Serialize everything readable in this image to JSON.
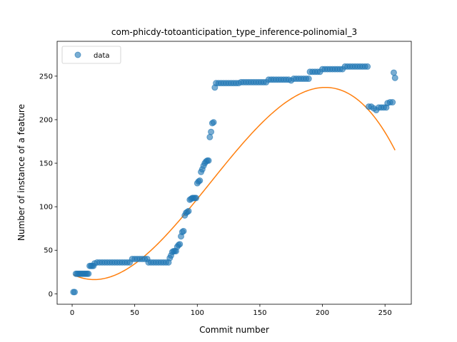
{
  "chart_data": {
    "type": "scatter",
    "title": "com-phicdy-totoanticipation_type_inference-polinomial_3",
    "xlabel": "Commit number",
    "ylabel": "Number of instance of a feature",
    "xlim": [
      -12,
      271
    ],
    "ylim": [
      -12,
      290
    ],
    "xticks": [
      0,
      50,
      100,
      150,
      200,
      250
    ],
    "yticks": [
      0,
      50,
      100,
      150,
      200,
      250
    ],
    "grid": false,
    "legend": {
      "position": "top-left",
      "entries": [
        "data"
      ]
    },
    "colors": {
      "data": "#1f77b4",
      "fit": "#ff7f0e"
    },
    "series": [
      {
        "name": "data",
        "kind": "scatter",
        "points": [
          [
            1,
            2
          ],
          [
            2,
            2
          ],
          [
            3,
            23
          ],
          [
            4,
            23
          ],
          [
            5,
            23
          ],
          [
            6,
            23
          ],
          [
            7,
            23
          ],
          [
            8,
            23
          ],
          [
            9,
            23
          ],
          [
            10,
            23
          ],
          [
            11,
            23
          ],
          [
            12,
            23
          ],
          [
            13,
            23
          ],
          [
            14,
            32
          ],
          [
            15,
            32
          ],
          [
            16,
            32
          ],
          [
            17,
            32
          ],
          [
            18,
            35
          ],
          [
            20,
            36
          ],
          [
            22,
            36
          ],
          [
            24,
            36
          ],
          [
            26,
            36
          ],
          [
            28,
            36
          ],
          [
            30,
            36
          ],
          [
            32,
            36
          ],
          [
            34,
            36
          ],
          [
            36,
            36
          ],
          [
            38,
            36
          ],
          [
            40,
            36
          ],
          [
            42,
            36
          ],
          [
            44,
            36
          ],
          [
            46,
            36
          ],
          [
            48,
            40
          ],
          [
            50,
            40
          ],
          [
            52,
            40
          ],
          [
            54,
            40
          ],
          [
            56,
            40
          ],
          [
            58,
            40
          ],
          [
            60,
            40
          ],
          [
            61,
            36
          ],
          [
            63,
            36
          ],
          [
            65,
            36
          ],
          [
            67,
            36
          ],
          [
            69,
            36
          ],
          [
            71,
            36
          ],
          [
            73,
            36
          ],
          [
            75,
            36
          ],
          [
            77,
            36
          ],
          [
            78,
            41
          ],
          [
            79,
            44
          ],
          [
            80,
            48
          ],
          [
            81,
            49
          ],
          [
            82,
            49
          ],
          [
            83,
            49
          ],
          [
            84,
            54
          ],
          [
            85,
            56
          ],
          [
            86,
            57
          ],
          [
            87,
            66
          ],
          [
            88,
            71
          ],
          [
            89,
            72
          ],
          [
            90,
            90
          ],
          [
            91,
            93
          ],
          [
            92,
            94
          ],
          [
            93,
            95
          ],
          [
            94,
            108
          ],
          [
            95,
            109
          ],
          [
            96,
            110
          ],
          [
            97,
            110
          ],
          [
            98,
            110
          ],
          [
            99,
            110
          ],
          [
            100,
            127
          ],
          [
            101,
            129
          ],
          [
            102,
            130
          ],
          [
            103,
            140
          ],
          [
            104,
            143
          ],
          [
            105,
            147
          ],
          [
            106,
            150
          ],
          [
            107,
            152
          ],
          [
            108,
            153
          ],
          [
            109,
            153
          ],
          [
            110,
            180
          ],
          [
            111,
            186
          ],
          [
            112,
            196
          ],
          [
            113,
            197
          ],
          [
            114,
            237
          ],
          [
            115,
            242
          ],
          [
            117,
            242
          ],
          [
            119,
            242
          ],
          [
            121,
            242
          ],
          [
            123,
            242
          ],
          [
            125,
            242
          ],
          [
            127,
            242
          ],
          [
            129,
            242
          ],
          [
            131,
            242
          ],
          [
            133,
            242
          ],
          [
            135,
            243
          ],
          [
            137,
            243
          ],
          [
            139,
            243
          ],
          [
            141,
            243
          ],
          [
            143,
            243
          ],
          [
            145,
            243
          ],
          [
            147,
            243
          ],
          [
            149,
            243
          ],
          [
            151,
            243
          ],
          [
            153,
            243
          ],
          [
            155,
            243
          ],
          [
            157,
            246
          ],
          [
            159,
            246
          ],
          [
            161,
            246
          ],
          [
            163,
            246
          ],
          [
            165,
            246
          ],
          [
            167,
            246
          ],
          [
            169,
            246
          ],
          [
            171,
            246
          ],
          [
            173,
            246
          ],
          [
            175,
            245
          ],
          [
            177,
            247
          ],
          [
            179,
            247
          ],
          [
            181,
            247
          ],
          [
            183,
            247
          ],
          [
            185,
            247
          ],
          [
            187,
            247
          ],
          [
            189,
            247
          ],
          [
            190,
            255
          ],
          [
            192,
            255
          ],
          [
            194,
            255
          ],
          [
            196,
            255
          ],
          [
            198,
            255
          ],
          [
            200,
            258
          ],
          [
            202,
            258
          ],
          [
            204,
            258
          ],
          [
            206,
            258
          ],
          [
            208,
            258
          ],
          [
            210,
            258
          ],
          [
            212,
            258
          ],
          [
            214,
            258
          ],
          [
            216,
            258
          ],
          [
            218,
            261
          ],
          [
            220,
            261
          ],
          [
            222,
            261
          ],
          [
            224,
            261
          ],
          [
            226,
            261
          ],
          [
            228,
            261
          ],
          [
            230,
            261
          ],
          [
            232,
            261
          ],
          [
            234,
            261
          ],
          [
            236,
            261
          ],
          [
            237,
            215
          ],
          [
            239,
            215
          ],
          [
            241,
            213
          ],
          [
            243,
            211
          ],
          [
            245,
            214
          ],
          [
            247,
            214
          ],
          [
            249,
            214
          ],
          [
            251,
            214
          ],
          [
            252,
            219
          ],
          [
            254,
            220
          ],
          [
            256,
            220
          ],
          [
            257,
            254
          ],
          [
            258,
            248
          ]
        ]
      },
      {
        "name": "",
        "kind": "line",
        "polynomial": [
          22.65,
          -0.7425,
          0.02305,
          -6.99e-05
        ],
        "x_range": [
          1,
          258
        ]
      }
    ]
  }
}
